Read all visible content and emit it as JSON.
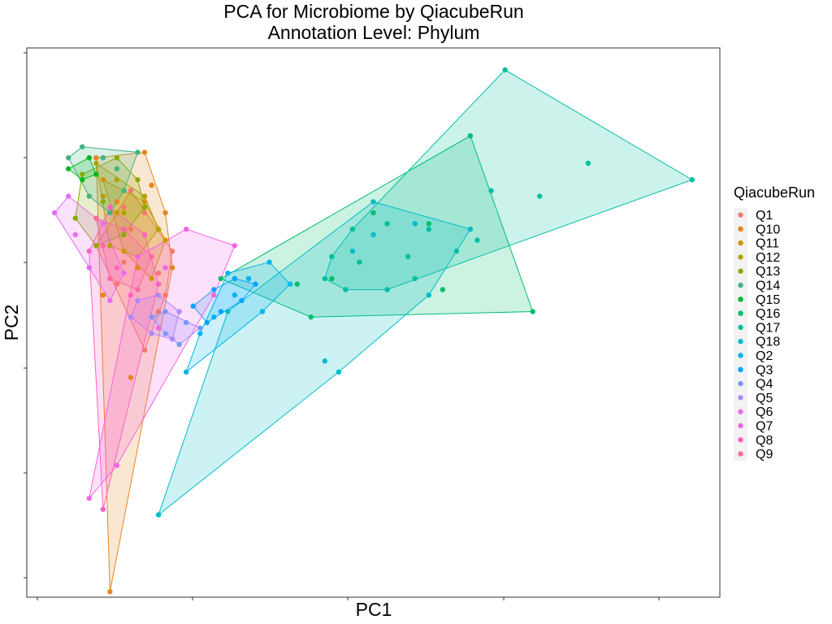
{
  "chart_data": {
    "type": "scatter",
    "title_line1": "PCA for Microbiome by QiacubeRun",
    "title_line2": "Annotation Level: Phylum",
    "xlabel": "PC1",
    "ylabel": "PC2",
    "xlim": [
      0,
      100
    ],
    "ylim": [
      0,
      100
    ],
    "grid": false,
    "tick_labels_shown": false,
    "hulls": true,
    "legend": {
      "title": "QiacubeRun",
      "position": "right"
    },
    "series": [
      {
        "name": "Q1",
        "color": "#F8766D",
        "points": [
          [
            14,
            71
          ],
          [
            15,
            74
          ],
          [
            17,
            70
          ],
          [
            21,
            63
          ],
          [
            19,
            52
          ],
          [
            17,
            45
          ],
          [
            13,
            57
          ],
          [
            10,
            64
          ],
          [
            15,
            67
          ],
          [
            19,
            59
          ],
          [
            17,
            66
          ],
          [
            14,
            61
          ],
          [
            20,
            55
          ]
        ]
      },
      {
        "name": "Q10",
        "color": "#E7851E",
        "points": [
          [
            10,
            80
          ],
          [
            17,
            81
          ],
          [
            18,
            75
          ],
          [
            20,
            70
          ],
          [
            21,
            60
          ],
          [
            15,
            40
          ],
          [
            12,
            1
          ],
          [
            11,
            55
          ],
          [
            14,
            66
          ],
          [
            16,
            60
          ],
          [
            13,
            72
          ]
        ]
      },
      {
        "name": "Q11",
        "color": "#D09400",
        "points": [
          [
            11,
            76
          ],
          [
            17,
            72
          ],
          [
            20,
            65
          ],
          [
            18,
            58
          ],
          [
            14,
            63
          ],
          [
            13,
            70
          ]
        ]
      },
      {
        "name": "Q12",
        "color": "#B2A100",
        "points": [
          [
            10,
            79
          ],
          [
            13,
            76
          ],
          [
            17,
            73
          ],
          [
            19,
            67
          ],
          [
            16,
            62
          ],
          [
            12,
            64
          ],
          [
            14,
            70
          ],
          [
            11,
            73
          ]
        ]
      },
      {
        "name": "Q13",
        "color": "#8AAB00",
        "points": [
          [
            8,
            77
          ],
          [
            13,
            80
          ],
          [
            16,
            76
          ],
          [
            17,
            71
          ],
          [
            14,
            66
          ],
          [
            10,
            64
          ],
          [
            7,
            69
          ],
          [
            11,
            72
          ]
        ]
      },
      {
        "name": "Q14",
        "color": "#43B284",
        "points": [
          [
            6,
            80
          ],
          [
            8,
            82
          ],
          [
            11,
            80
          ],
          [
            13,
            78
          ],
          [
            14,
            74
          ],
          [
            12,
            70
          ],
          [
            9,
            73
          ],
          [
            16,
            81
          ]
        ]
      },
      {
        "name": "Q15",
        "color": "#00B81F",
        "points": [
          [
            6,
            78
          ],
          [
            9,
            80
          ],
          [
            10,
            77
          ],
          [
            8,
            76
          ]
        ]
      },
      {
        "name": "Q16",
        "color": "#00BE6C",
        "points": [
          [
            28,
            58
          ],
          [
            64,
            84
          ],
          [
            73,
            52
          ],
          [
            41,
            51
          ],
          [
            39,
            57
          ],
          [
            44,
            58
          ],
          [
            60,
            56
          ],
          [
            50,
            70
          ],
          [
            58,
            68
          ]
        ]
      },
      {
        "name": "Q17",
        "color": "#00BFA0",
        "points": [
          [
            69,
            96
          ],
          [
            96,
            76
          ],
          [
            81,
            79
          ],
          [
            74,
            73
          ],
          [
            67,
            74
          ],
          [
            47,
            67
          ],
          [
            52,
            68
          ],
          [
            58,
            67
          ],
          [
            65,
            65
          ],
          [
            62,
            63
          ],
          [
            56,
            58
          ],
          [
            52,
            56
          ],
          [
            48,
            61
          ],
          [
            46,
            56
          ],
          [
            43,
            58
          ],
          [
            44,
            62
          ],
          [
            55,
            62
          ]
        ]
      },
      {
        "name": "Q18",
        "color": "#00BCC7",
        "points": [
          [
            19,
            15
          ],
          [
            58,
            55
          ],
          [
            64,
            67
          ],
          [
            50,
            72
          ],
          [
            45,
            41
          ],
          [
            43,
            43
          ],
          [
            50,
            66
          ],
          [
            56,
            68
          ],
          [
            47,
            63
          ],
          [
            29,
            52
          ]
        ]
      },
      {
        "name": "Q2",
        "color": "#00B4EF",
        "points": [
          [
            35,
            61
          ],
          [
            38,
            57
          ],
          [
            34,
            52
          ],
          [
            27,
            51
          ],
          [
            23,
            41
          ],
          [
            25,
            48
          ],
          [
            30,
            55
          ],
          [
            32,
            58
          ],
          [
            29,
            59
          ]
        ]
      },
      {
        "name": "Q3",
        "color": "#00A5FF",
        "points": [
          [
            33,
            57
          ],
          [
            31,
            54
          ],
          [
            28,
            52
          ],
          [
            26,
            50
          ],
          [
            24,
            53
          ],
          [
            27,
            56
          ],
          [
            30,
            58
          ]
        ]
      },
      {
        "name": "Q4",
        "color": "#7997FF",
        "points": [
          [
            20,
            52
          ],
          [
            23,
            50
          ],
          [
            25,
            49
          ],
          [
            22,
            46
          ],
          [
            20,
            48
          ],
          [
            18,
            51
          ]
        ]
      },
      {
        "name": "Q5",
        "color": "#AC88FF",
        "points": [
          [
            16,
            54
          ],
          [
            19,
            55
          ],
          [
            22,
            52
          ],
          [
            21,
            47
          ],
          [
            18,
            48
          ],
          [
            15,
            51
          ]
        ]
      },
      {
        "name": "Q6",
        "color": "#E76BF3",
        "points": [
          [
            4,
            70
          ],
          [
            6,
            73
          ],
          [
            11,
            68
          ],
          [
            14,
            59
          ],
          [
            12,
            54
          ],
          [
            9,
            60
          ],
          [
            7,
            66
          ]
        ]
      },
      {
        "name": "Q7",
        "color": "#F564E3",
        "points": [
          [
            23,
            67
          ],
          [
            30,
            64
          ],
          [
            27,
            55
          ],
          [
            19,
            49
          ],
          [
            13,
            24
          ],
          [
            9,
            18
          ],
          [
            16,
            62
          ],
          [
            20,
            60
          ]
        ]
      },
      {
        "name": "Q8",
        "color": "#FF61C3",
        "points": [
          [
            9,
            63
          ],
          [
            12,
            71
          ],
          [
            17,
            66
          ],
          [
            19,
            57
          ],
          [
            11,
            16
          ],
          [
            15,
            55
          ],
          [
            13,
            60
          ]
        ]
      },
      {
        "name": "Q9",
        "color": "#FF67A4",
        "points": [
          [
            10,
            69
          ],
          [
            14,
            67
          ],
          [
            18,
            62
          ],
          [
            16,
            56
          ],
          [
            12,
            58
          ],
          [
            11,
            64
          ]
        ]
      }
    ]
  }
}
